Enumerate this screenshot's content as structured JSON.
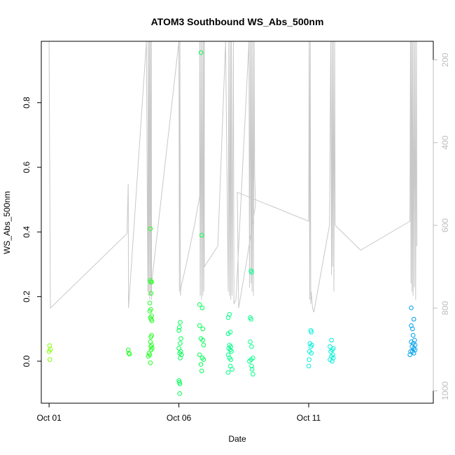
{
  "chart_data": {
    "type": "scatter",
    "title": "ATOM3 Southbound WS_Abs_500nm",
    "xlabel": "Date",
    "ylabel": "WS_Abs_500nm",
    "x_ticks": [
      "Oct 01",
      "Oct 06",
      "Oct 11"
    ],
    "x_tick_days": [
      1,
      6,
      11
    ],
    "xlim_days": [
      0.7,
      15.8
    ],
    "ylim": [
      -0.13,
      0.99
    ],
    "y_ticks": [
      0.0,
      0.2,
      0.4,
      0.6,
      0.8
    ],
    "y2_label": "",
    "y2_ticks": [
      200,
      400,
      600,
      800,
      1000
    ],
    "y2lim_reversed": [
      1030,
      155
    ],
    "grid": false,
    "legend": "none",
    "colors": {
      "trace": "#c8c8c8",
      "axis": "#000000",
      "right_axis": "#bdbdbd"
    },
    "series": [
      {
        "color": "#7fff00",
        "points": [
          [
            1.0,
            0.03
          ],
          [
            1.02,
            0.048
          ],
          [
            1.03,
            0.005
          ],
          [
            1.05,
            0.036
          ]
        ]
      },
      {
        "color": "#22ff22",
        "points": [
          [
            4.05,
            0.035
          ],
          [
            4.07,
            0.025
          ],
          [
            4.1,
            0.022
          ],
          [
            4.9,
            0.41
          ],
          [
            4.9,
            0.25
          ],
          [
            4.92,
            0.245
          ],
          [
            4.95,
            0.245
          ],
          [
            4.93,
            0.21
          ],
          [
            4.88,
            0.18
          ],
          [
            4.92,
            0.16
          ],
          [
            4.88,
            0.155
          ],
          [
            4.95,
            0.14
          ],
          [
            4.9,
            0.135
          ],
          [
            4.93,
            0.13
          ],
          [
            4.96,
            0.125
          ],
          [
            4.95,
            0.08
          ],
          [
            4.92,
            0.075
          ],
          [
            4.9,
            0.06
          ],
          [
            4.95,
            0.05
          ],
          [
            4.92,
            0.045
          ],
          [
            4.97,
            0.04
          ],
          [
            4.93,
            0.035
          ],
          [
            4.85,
            0.025
          ],
          [
            4.88,
            0.02
          ],
          [
            4.82,
            0.015
          ],
          [
            4.9,
            -0.005
          ]
        ]
      },
      {
        "color": "#00ff55",
        "points": [
          [
            6.05,
            0.12
          ],
          [
            6.02,
            0.105
          ],
          [
            6.0,
            0.095
          ],
          [
            6.08,
            0.07
          ],
          [
            6.05,
            0.055
          ],
          [
            6.0,
            0.04
          ],
          [
            6.07,
            0.03
          ],
          [
            6.03,
            0.025
          ],
          [
            6.1,
            0.02
          ],
          [
            6.05,
            0.01
          ],
          [
            6.0,
            -0.06
          ],
          [
            6.02,
            -0.065
          ],
          [
            6.04,
            -0.07
          ],
          [
            6.03,
            -0.1
          ],
          [
            6.85,
            0.955
          ],
          [
            6.88,
            0.39
          ],
          [
            6.8,
            0.175
          ],
          [
            6.9,
            0.165
          ],
          [
            6.8,
            0.11
          ],
          [
            6.92,
            0.1
          ],
          [
            6.85,
            0.07
          ],
          [
            6.92,
            0.065
          ],
          [
            6.95,
            0.05
          ],
          [
            6.8,
            0.02
          ],
          [
            6.9,
            0.01
          ],
          [
            6.95,
            0.005
          ],
          [
            6.85,
            -0.01
          ],
          [
            6.88,
            -0.03
          ]
        ]
      },
      {
        "color": "#00ff88",
        "points": [
          [
            7.95,
            0.145
          ],
          [
            7.9,
            0.135
          ],
          [
            7.98,
            0.09
          ],
          [
            7.9,
            0.085
          ],
          [
            7.95,
            0.05
          ],
          [
            8.0,
            0.045
          ],
          [
            7.92,
            0.04
          ],
          [
            7.98,
            0.035
          ],
          [
            8.02,
            0.03
          ],
          [
            7.9,
            0.02
          ],
          [
            7.95,
            0.01
          ],
          [
            8.0,
            0.005
          ],
          [
            7.98,
            -0.015
          ],
          [
            8.05,
            -0.025
          ],
          [
            7.9,
            -0.035
          ],
          [
            8.78,
            0.28
          ],
          [
            8.8,
            0.275
          ],
          [
            8.75,
            0.135
          ],
          [
            8.78,
            0.13
          ],
          [
            8.75,
            0.06
          ],
          [
            8.8,
            0.045
          ],
          [
            8.85,
            0.01
          ],
          [
            8.78,
            0.005
          ],
          [
            8.72,
            0.0
          ],
          [
            8.8,
            -0.015
          ],
          [
            8.82,
            -0.025
          ],
          [
            8.85,
            -0.04
          ]
        ]
      },
      {
        "color": "#00f0d8",
        "points": [
          [
            11.08,
            0.095
          ],
          [
            11.1,
            0.09
          ],
          [
            11.05,
            0.055
          ],
          [
            11.12,
            0.05
          ],
          [
            11.08,
            0.045
          ],
          [
            11.03,
            0.03
          ],
          [
            11.1,
            0.025
          ],
          [
            11.02,
            0.005
          ],
          [
            11.0,
            -0.015
          ],
          [
            11.88,
            0.065
          ],
          [
            11.82,
            0.045
          ],
          [
            11.95,
            0.04
          ],
          [
            11.9,
            0.035
          ],
          [
            11.85,
            0.03
          ],
          [
            11.93,
            0.02
          ],
          [
            11.88,
            0.015
          ],
          [
            11.95,
            0.01
          ],
          [
            11.82,
            0.005
          ],
          [
            11.9,
            0.0
          ]
        ]
      },
      {
        "color": "#00a0ea",
        "points": [
          [
            14.95,
            0.165
          ],
          [
            15.05,
            0.13
          ],
          [
            14.95,
            0.11
          ],
          [
            15.0,
            0.1
          ],
          [
            15.02,
            0.08
          ],
          [
            15.08,
            0.065
          ],
          [
            14.95,
            0.06
          ],
          [
            15.03,
            0.055
          ],
          [
            15.1,
            0.05
          ],
          [
            14.98,
            0.045
          ],
          [
            15.05,
            0.04
          ],
          [
            15.1,
            0.035
          ],
          [
            14.93,
            0.03
          ],
          [
            15.0,
            0.03
          ],
          [
            15.05,
            0.025
          ],
          [
            14.9,
            0.02
          ]
        ]
      }
    ],
    "trace_series": {
      "axis": "right",
      "points": [
        [
          1.0,
          155
        ],
        [
          1.0,
          155
        ],
        [
          1.05,
          800
        ],
        [
          4.0,
          620
        ],
        [
          4.05,
          500
        ],
        [
          4.06,
          800
        ],
        [
          4.75,
          155
        ],
        [
          4.8,
          760
        ],
        [
          4.82,
          155
        ],
        [
          4.84,
          770
        ],
        [
          4.86,
          155
        ],
        [
          4.88,
          780
        ],
        [
          4.9,
          155
        ],
        [
          4.92,
          770
        ],
        [
          4.94,
          155
        ],
        [
          4.95,
          780
        ],
        [
          4.95,
          740
        ],
        [
          6.0,
          155
        ],
        [
          6.02,
          760
        ],
        [
          6.04,
          155
        ],
        [
          6.06,
          770
        ],
        [
          6.08,
          750
        ],
        [
          6.3,
          690
        ],
        [
          6.6,
          600
        ],
        [
          6.8,
          530
        ],
        [
          6.8,
          155
        ],
        [
          6.82,
          770
        ],
        [
          6.85,
          155
        ],
        [
          6.87,
          780
        ],
        [
          6.9,
          155
        ],
        [
          6.92,
          770
        ],
        [
          6.95,
          155
        ],
        [
          6.96,
          760
        ],
        [
          6.98,
          155
        ],
        [
          6.98,
          700
        ],
        [
          7.5,
          650
        ],
        [
          7.8,
          155
        ],
        [
          7.9,
          760
        ],
        [
          7.92,
          155
        ],
        [
          7.95,
          770
        ],
        [
          7.98,
          155
        ],
        [
          8.0,
          780
        ],
        [
          8.02,
          155
        ],
        [
          8.05,
          770
        ],
        [
          8.1,
          155
        ],
        [
          8.12,
          790
        ],
        [
          8.2,
          780
        ],
        [
          8.7,
          155
        ],
        [
          8.72,
          750
        ],
        [
          8.75,
          155
        ],
        [
          8.78,
          740
        ],
        [
          8.8,
          155
        ],
        [
          8.82,
          760
        ],
        [
          8.85,
          155
        ],
        [
          8.87,
          770
        ],
        [
          8.9,
          155
        ],
        [
          8.92,
          480
        ],
        [
          8.95,
          550
        ],
        [
          8.6,
          690
        ],
        [
          8.3,
          800
        ],
        [
          8.25,
          520
        ],
        [
          11.0,
          590
        ],
        [
          11.02,
          155
        ],
        [
          11.04,
          780
        ],
        [
          11.06,
          155
        ],
        [
          11.08,
          790
        ],
        [
          11.1,
          760
        ],
        [
          11.15,
          800
        ],
        [
          11.2,
          810
        ],
        [
          11.8,
          600
        ],
        [
          11.85,
          155
        ],
        [
          11.88,
          720
        ],
        [
          11.9,
          155
        ],
        [
          11.92,
          700
        ],
        [
          11.95,
          155
        ],
        [
          11.97,
          760
        ],
        [
          12.0,
          155
        ],
        [
          12.02,
          600
        ],
        [
          13.0,
          660
        ],
        [
          14.9,
          590
        ],
        [
          14.92,
          155
        ],
        [
          14.94,
          740
        ],
        [
          14.96,
          155
        ],
        [
          14.98,
          760
        ],
        [
          15.0,
          155
        ],
        [
          15.02,
          770
        ],
        [
          15.05,
          155
        ],
        [
          15.07,
          750
        ],
        [
          15.1,
          155
        ],
        [
          15.12,
          780
        ],
        [
          15.15,
          155
        ],
        [
          15.17,
          650
        ]
      ]
    }
  }
}
